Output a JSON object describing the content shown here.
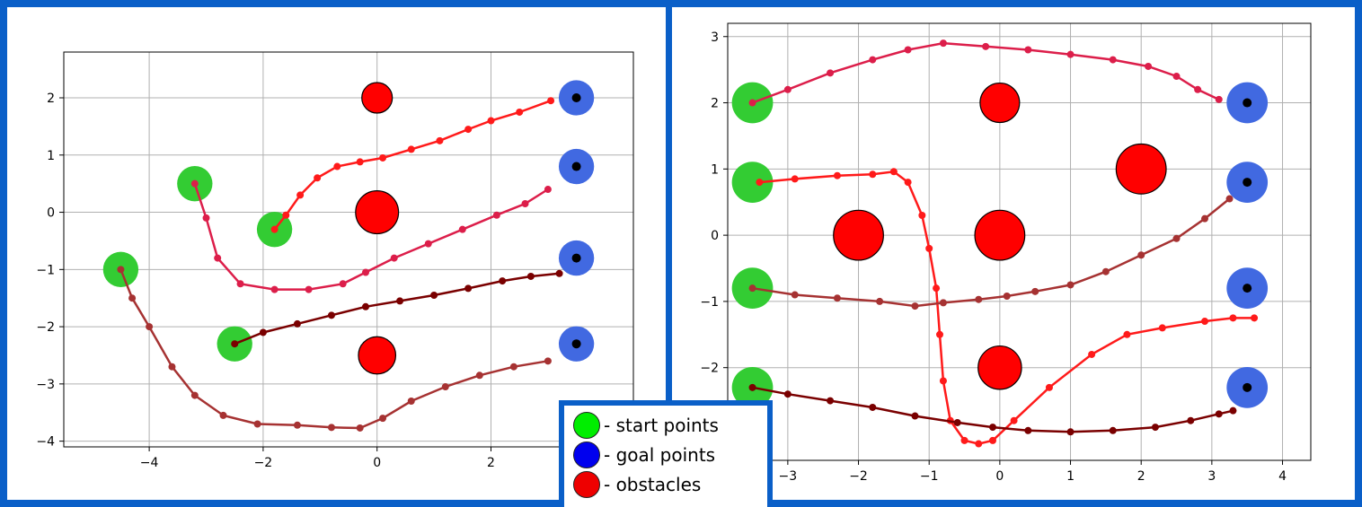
{
  "legend": {
    "items": [
      {
        "label": "- start points",
        "color": "#00ee00"
      },
      {
        "label": "- goal points",
        "color": "#0000ee"
      },
      {
        "label": "- obstacles",
        "color": "#ee0000"
      }
    ]
  },
  "chart_data": [
    {
      "type": "scatter",
      "title": "",
      "xlabel": "",
      "ylabel": "",
      "xlim": [
        -5.5,
        4.5
      ],
      "ylim": [
        -4.1,
        2.8
      ],
      "xticks": [
        -4,
        -2,
        0,
        2
      ],
      "yticks": [
        -4,
        -3,
        -2,
        -1,
        0,
        1,
        2
      ],
      "grid": true,
      "start_points": [
        [
          -4.5,
          -1.0
        ],
        [
          -3.2,
          0.5
        ],
        [
          -1.8,
          -0.3
        ],
        [
          -2.5,
          -2.3
        ]
      ],
      "goal_points": [
        [
          3.5,
          2.0
        ],
        [
          3.5,
          0.8
        ],
        [
          3.5,
          -0.8
        ],
        [
          3.5,
          -2.3
        ]
      ],
      "obstacles": [
        {
          "x": 0,
          "y": 2.0,
          "r": 0.27
        },
        {
          "x": 0,
          "y": 0.0,
          "r": 0.38
        },
        {
          "x": 0,
          "y": -2.5,
          "r": 0.33
        }
      ],
      "start_radius": 0.5,
      "goal_radius": 0.5,
      "series": [
        {
          "color": "#ff1a1a",
          "points": [
            [
              -1.8,
              -0.3
            ],
            [
              -1.6,
              -0.05
            ],
            [
              -1.35,
              0.3
            ],
            [
              -1.05,
              0.6
            ],
            [
              -0.7,
              0.8
            ],
            [
              -0.3,
              0.88
            ],
            [
              0.1,
              0.95
            ],
            [
              0.6,
              1.1
            ],
            [
              1.1,
              1.25
            ],
            [
              1.6,
              1.45
            ],
            [
              2.0,
              1.6
            ],
            [
              2.5,
              1.75
            ],
            [
              3.05,
              1.95
            ]
          ]
        },
        {
          "color": "#dc1e4a",
          "points": [
            [
              -3.2,
              0.5
            ],
            [
              -3.0,
              -0.1
            ],
            [
              -2.8,
              -0.8
            ],
            [
              -2.4,
              -1.25
            ],
            [
              -1.8,
              -1.35
            ],
            [
              -1.2,
              -1.35
            ],
            [
              -0.6,
              -1.25
            ],
            [
              -0.2,
              -1.05
            ],
            [
              0.3,
              -0.8
            ],
            [
              0.9,
              -0.55
            ],
            [
              1.5,
              -0.3
            ],
            [
              2.1,
              -0.05
            ],
            [
              2.6,
              0.15
            ],
            [
              3.0,
              0.4
            ]
          ]
        },
        {
          "color": "#7a0000",
          "points": [
            [
              -2.5,
              -2.3
            ],
            [
              -2.0,
              -2.1
            ],
            [
              -1.4,
              -1.95
            ],
            [
              -0.8,
              -1.8
            ],
            [
              -0.2,
              -1.65
            ],
            [
              0.4,
              -1.55
            ],
            [
              1.0,
              -1.45
            ],
            [
              1.6,
              -1.33
            ],
            [
              2.2,
              -1.2
            ],
            [
              2.7,
              -1.12
            ],
            [
              3.2,
              -1.07
            ]
          ]
        },
        {
          "color": "#a63232",
          "points": [
            [
              -4.5,
              -1.0
            ],
            [
              -4.3,
              -1.5
            ],
            [
              -4.0,
              -2.0
            ],
            [
              -3.6,
              -2.7
            ],
            [
              -3.2,
              -3.2
            ],
            [
              -2.7,
              -3.55
            ],
            [
              -2.1,
              -3.7
            ],
            [
              -1.4,
              -3.72
            ],
            [
              -0.8,
              -3.76
            ],
            [
              -0.3,
              -3.77
            ],
            [
              0.1,
              -3.6
            ],
            [
              0.6,
              -3.3
            ],
            [
              1.2,
              -3.05
            ],
            [
              1.8,
              -2.85
            ],
            [
              2.4,
              -2.7
            ],
            [
              3.0,
              -2.6
            ]
          ]
        }
      ]
    },
    {
      "type": "scatter",
      "title": "",
      "xlabel": "",
      "ylabel": "",
      "xlim": [
        -3.85,
        4.4
      ],
      "ylim": [
        -3.4,
        3.2
      ],
      "xticks": [
        -3,
        -2,
        -1,
        0,
        1,
        2,
        3,
        4
      ],
      "yticks": [
        -2,
        -1,
        0,
        1,
        2,
        3
      ],
      "grid": true,
      "start_points": [
        [
          -3.5,
          2.0
        ],
        [
          -3.5,
          0.8
        ],
        [
          -3.5,
          -0.8
        ],
        [
          -3.5,
          -2.3
        ]
      ],
      "goal_points": [
        [
          3.5,
          2.0
        ],
        [
          3.5,
          0.8
        ],
        [
          3.5,
          -0.8
        ],
        [
          3.5,
          -2.3
        ]
      ],
      "obstacles": [
        {
          "x": 0,
          "y": 2.0,
          "r": 0.3
        },
        {
          "x": 2,
          "y": 1.0,
          "r": 0.38
        },
        {
          "x": -2,
          "y": 0.0,
          "r": 0.38
        },
        {
          "x": 0,
          "y": 0.0,
          "r": 0.38
        },
        {
          "x": 0,
          "y": -2.0,
          "r": 0.33
        }
      ],
      "start_radius": 0.5,
      "goal_radius": 0.5,
      "series": [
        {
          "color": "#dc1e4a",
          "points": [
            [
              -3.5,
              2.0
            ],
            [
              -3.0,
              2.2
            ],
            [
              -2.4,
              2.45
            ],
            [
              -1.8,
              2.65
            ],
            [
              -1.3,
              2.8
            ],
            [
              -0.8,
              2.9
            ],
            [
              -0.2,
              2.85
            ],
            [
              0.4,
              2.8
            ],
            [
              1.0,
              2.73
            ],
            [
              1.6,
              2.65
            ],
            [
              2.1,
              2.55
            ],
            [
              2.5,
              2.4
            ],
            [
              2.8,
              2.2
            ],
            [
              3.1,
              2.05
            ]
          ]
        },
        {
          "color": "#ff1a1a",
          "points": [
            [
              -3.4,
              0.8
            ],
            [
              -2.9,
              0.85
            ],
            [
              -2.3,
              0.9
            ],
            [
              -1.8,
              0.92
            ],
            [
              -1.5,
              0.96
            ],
            [
              -1.3,
              0.8
            ],
            [
              -1.1,
              0.3
            ],
            [
              -1.0,
              -0.2
            ],
            [
              -0.9,
              -0.8
            ],
            [
              -0.85,
              -1.5
            ],
            [
              -0.8,
              -2.2
            ],
            [
              -0.7,
              -2.8
            ],
            [
              -0.5,
              -3.1
            ],
            [
              -0.3,
              -3.15
            ],
            [
              -0.1,
              -3.1
            ],
            [
              0.2,
              -2.8
            ],
            [
              0.7,
              -2.3
            ],
            [
              1.3,
              -1.8
            ],
            [
              1.8,
              -1.5
            ],
            [
              2.3,
              -1.4
            ],
            [
              2.9,
              -1.3
            ],
            [
              3.3,
              -1.25
            ],
            [
              3.6,
              -1.25
            ]
          ]
        },
        {
          "color": "#a63232",
          "points": [
            [
              -3.5,
              -0.8
            ],
            [
              -2.9,
              -0.9
            ],
            [
              -2.3,
              -0.95
            ],
            [
              -1.7,
              -1.0
            ],
            [
              -1.2,
              -1.07
            ],
            [
              -0.8,
              -1.02
            ],
            [
              -0.3,
              -0.97
            ],
            [
              0.1,
              -0.92
            ],
            [
              0.5,
              -0.85
            ],
            [
              1.0,
              -0.75
            ],
            [
              1.5,
              -0.55
            ],
            [
              2.0,
              -0.3
            ],
            [
              2.5,
              -0.05
            ],
            [
              2.9,
              0.25
            ],
            [
              3.25,
              0.55
            ]
          ]
        },
        {
          "color": "#7a0000",
          "points": [
            [
              -3.5,
              -2.3
            ],
            [
              -3.0,
              -2.4
            ],
            [
              -2.4,
              -2.5
            ],
            [
              -1.8,
              -2.6
            ],
            [
              -1.2,
              -2.73
            ],
            [
              -0.6,
              -2.83
            ],
            [
              -0.1,
              -2.9
            ],
            [
              0.4,
              -2.95
            ],
            [
              1.0,
              -2.97
            ],
            [
              1.6,
              -2.95
            ],
            [
              2.2,
              -2.9
            ],
            [
              2.7,
              -2.8
            ],
            [
              3.1,
              -2.7
            ],
            [
              3.3,
              -2.65
            ]
          ]
        }
      ]
    }
  ]
}
